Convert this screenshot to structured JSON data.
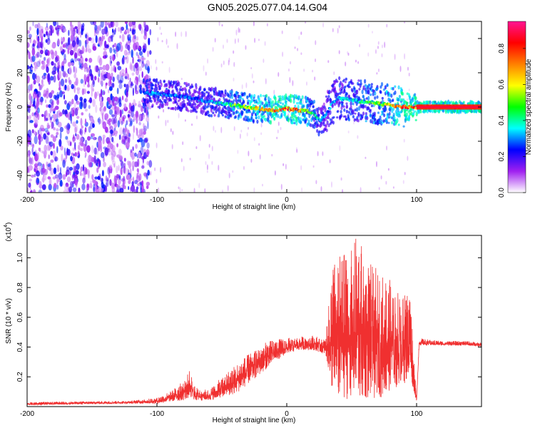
{
  "title": "GN05.2025.077.04.14.G04",
  "chart_data": [
    {
      "type": "heatmap",
      "title": "GN05.2025.077.04.14.G04",
      "xlabel": "Height of straight line (km)",
      "ylabel": "Frequency (Hz)",
      "xlim": [
        -200,
        150
      ],
      "ylim": [
        -50,
        50
      ],
      "x_ticks": [
        "-200",
        "-100",
        "0",
        "100"
      ],
      "y_ticks": [
        "40",
        "20",
        "0",
        "-20",
        "-40"
      ],
      "colorbar": {
        "label": "Normalized spectral amplitude",
        "range": [
          0.0,
          0.95
        ],
        "ticks": [
          "0.0",
          "0.2",
          "0.4",
          "0.6",
          "0.8"
        ],
        "colors": [
          "#ffffff",
          "#a020f0",
          "#0000ff",
          "#00ffff",
          "#00ff00",
          "#ffff00",
          "#ff8000",
          "#ff0000",
          "#ff1493"
        ]
      },
      "ridge": {
        "x": [
          -110,
          -100,
          -90,
          -80,
          -70,
          -60,
          -50,
          -40,
          -30,
          -20,
          -10,
          0,
          10,
          20,
          25,
          30,
          35,
          40,
          50,
          60,
          70,
          80,
          90,
          100,
          110,
          120,
          130,
          140,
          150
        ],
        "frequency": [
          8,
          8,
          7,
          6,
          5,
          3,
          2,
          1,
          0,
          -1,
          -2,
          -1,
          -2,
          -3,
          -8,
          -5,
          2,
          5,
          4,
          3,
          2,
          1,
          0,
          0,
          0,
          0,
          0,
          0,
          0
        ],
        "amplitude": [
          0.3,
          0.35,
          0.3,
          0.3,
          0.3,
          0.35,
          0.4,
          0.55,
          0.6,
          0.7,
          0.8,
          0.85,
          0.75,
          0.5,
          0.35,
          0.3,
          0.35,
          0.35,
          0.4,
          0.5,
          0.55,
          0.65,
          0.85,
          0.8,
          0.8,
          0.82,
          0.85,
          0.85,
          0.85
        ]
      },
      "noise_region_x": [
        -200,
        -105
      ]
    },
    {
      "type": "line",
      "xlabel": "Height of straight line (km)",
      "ylabel": "SNR (10 * v/v)",
      "y_multiplier": "(x10^4)",
      "y_multiplier_base": "(x10",
      "y_multiplier_exp": "4",
      "y_multiplier_close": ")",
      "xlim": [
        -200,
        150
      ],
      "ylim": [
        0,
        1.15
      ],
      "x_ticks": [
        "-200",
        "-100",
        "0",
        "100"
      ],
      "y_ticks": [
        "0.2",
        "0.4",
        "0.6",
        "0.8",
        "1.0"
      ],
      "color": "#f03030",
      "series": [
        {
          "envelope_x": [
            -200,
            -120,
            -100,
            -90,
            -80,
            -75,
            -70,
            -60,
            -50,
            -40,
            -30,
            -20,
            -10,
            0,
            10,
            20,
            30,
            35,
            40,
            50,
            55,
            60,
            70,
            80,
            90,
            95,
            100,
            102,
            110,
            120,
            130,
            140,
            150
          ],
          "envelope_upper": [
            0.03,
            0.04,
            0.06,
            0.1,
            0.17,
            0.24,
            0.13,
            0.11,
            0.2,
            0.28,
            0.35,
            0.42,
            0.45,
            0.46,
            0.47,
            0.48,
            0.45,
            0.95,
            1.02,
            1.05,
            1.2,
            1.0,
            0.92,
            0.85,
            0.75,
            0.8,
            0.05,
            0.46,
            0.45,
            0.44,
            0.44,
            0.44,
            0.43
          ],
          "envelope_lower": [
            0.01,
            0.02,
            0.02,
            0.03,
            0.04,
            0.05,
            0.04,
            0.04,
            0.06,
            0.08,
            0.15,
            0.22,
            0.3,
            0.35,
            0.38,
            0.38,
            0.35,
            0.1,
            0.05,
            0.05,
            0.03,
            0.05,
            0.05,
            0.1,
            0.15,
            0.2,
            0.03,
            0.41,
            0.41,
            0.41,
            0.41,
            0.41,
            0.4
          ]
        }
      ]
    }
  ]
}
